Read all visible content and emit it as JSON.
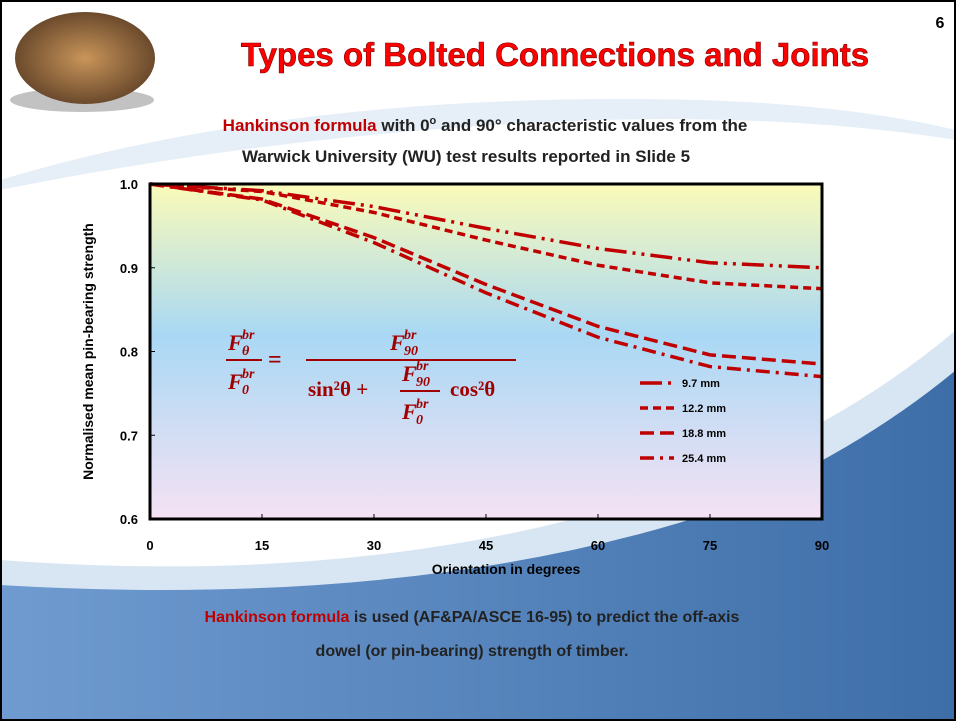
{
  "slide_number": "6",
  "title": "Types of Bolted Connections and Joints",
  "subtitle": {
    "highlight": "Hankinson formula",
    "line1_a": " with 0",
    "degree_sup": "o",
    "line1_b": " and 90° characteristic values from the",
    "line2": "Warwick University (WU) test results reported in Slide 5"
  },
  "formula": {
    "lhs_num": {
      "base": "F",
      "sub": "θ",
      "sup": "br"
    },
    "lhs_den": {
      "base": "F",
      "sub": "0",
      "sup": "br"
    },
    "equals": "=",
    "rhs_num": {
      "base": "F",
      "sub": "90",
      "sup": "br"
    },
    "sin_term": "sin²θ +",
    "inner_num": {
      "base": "F",
      "sub": "90",
      "sup": "br"
    },
    "inner_den": {
      "base": "F",
      "sub": "0",
      "sup": "br"
    },
    "cos_term": "cos²θ"
  },
  "footer": {
    "highlight": "Hankinson formula",
    "line1": " is used (AF&PA/ASCE 16-95) to predict the off-axis",
    "line2": "dowel (or pin-bearing) strength of timber."
  },
  "chart_data": {
    "type": "line",
    "x_label": "Orientation in degrees",
    "y_label": "Normalised mean pin-bearing strength",
    "x": [
      0,
      15,
      30,
      45,
      60,
      75,
      90
    ],
    "series": [
      {
        "name": "9.7 mm",
        "color": "#c00000",
        "dash": "22 6 3 6 3 6",
        "values": [
          1,
          0.992,
          0.973,
          0.947,
          0.923,
          0.906,
          0.9
        ]
      },
      {
        "name": "12.2 mm",
        "color": "#c00000",
        "dash": "8 5",
        "values": [
          1,
          0.991,
          0.966,
          0.933,
          0.903,
          0.882,
          0.875
        ]
      },
      {
        "name": "18.8 mm",
        "color": "#c00000",
        "dash": "14 6",
        "values": [
          1,
          0.982,
          0.936,
          0.88,
          0.83,
          0.796,
          0.785
        ]
      },
      {
        "name": "25.4 mm",
        "color": "#c00000",
        "dash": "14 6 3 6",
        "values": [
          1,
          0.981,
          0.93,
          0.87,
          0.817,
          0.782,
          0.77
        ]
      }
    ],
    "xlim": [
      0,
      90
    ],
    "xticks": [
      0,
      15,
      30,
      45,
      60,
      75,
      90
    ],
    "ylim": [
      0.6,
      1
    ],
    "yticks": [
      0.6,
      0.7,
      0.8,
      0.9,
      {
        "value": 1,
        "label": "1.0"
      }
    ],
    "legend": "right"
  }
}
